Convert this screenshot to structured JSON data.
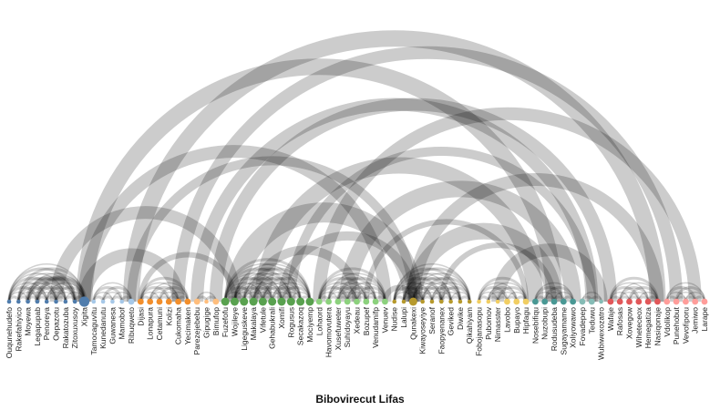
{
  "title": "Bibovirecut Lifas",
  "nodes": [
    {
      "label": "Ouqunehudefo",
      "color": "#4f7cac",
      "size": 1
    },
    {
      "label": "Rakefahiyico",
      "color": "#4f7cac",
      "size": 1
    },
    {
      "label": "Moyewa",
      "color": "#4f7cac",
      "size": 1
    },
    {
      "label": "Legapupab",
      "color": "#4f7cac",
      "size": 1
    },
    {
      "label": "Penoreya",
      "color": "#4f7cac",
      "size": 1
    },
    {
      "label": "Oepazotu",
      "color": "#4f7cac",
      "size": 1
    },
    {
      "label": "Rakatozuba",
      "color": "#4f7cac",
      "size": 1
    },
    {
      "label": "Zitoxuxusoy",
      "color": "#4f7cac",
      "size": 1
    },
    {
      "label": "Xigita",
      "color": "#4f7cac",
      "size": 4
    },
    {
      "label": "Tamocaguvitu",
      "color": "#a6c8e8",
      "size": 1
    },
    {
      "label": "Kunedanutu",
      "color": "#a6c8e8",
      "size": 1
    },
    {
      "label": "Guwanesa",
      "color": "#a6c8e8",
      "size": 1
    },
    {
      "label": "Mamobof",
      "color": "#a6c8e8",
      "size": 1
    },
    {
      "label": "Ribuqweto",
      "color": "#a6c8e8",
      "size": 2
    },
    {
      "label": "Dijasi",
      "color": "#f28e2b",
      "size": 2
    },
    {
      "label": "Lonapura",
      "color": "#f28e2b",
      "size": 2
    },
    {
      "label": "Cetamuni",
      "color": "#f28e2b",
      "size": 2
    },
    {
      "label": "Kolizi",
      "color": "#f28e2b",
      "size": 2
    },
    {
      "label": "Cukomaha",
      "color": "#f28e2b",
      "size": 2
    },
    {
      "label": "Yecimaken",
      "color": "#f28e2b",
      "size": 2
    },
    {
      "label": "Parezejebebu",
      "color": "#ffbe7d",
      "size": 2
    },
    {
      "label": "Gipugige",
      "color": "#ffbe7d",
      "size": 1
    },
    {
      "label": "Bimufop",
      "color": "#ffbe7d",
      "size": 2
    },
    {
      "label": "Fuzefofu",
      "color": "#59a14f",
      "size": 3
    },
    {
      "label": "Wojileye",
      "color": "#59a14f",
      "size": 3
    },
    {
      "label": "Ligeguskeve",
      "color": "#59a14f",
      "size": 3
    },
    {
      "label": "Makalaya",
      "color": "#59a14f",
      "size": 3
    },
    {
      "label": "Vifetule",
      "color": "#59a14f",
      "size": 3
    },
    {
      "label": "Gehabukrali",
      "color": "#59a14f",
      "size": 3
    },
    {
      "label": "Xomifi",
      "color": "#59a14f",
      "size": 3
    },
    {
      "label": "Rogusus",
      "color": "#59a14f",
      "size": 3
    },
    {
      "label": "Secakazoq",
      "color": "#59a14f",
      "size": 3
    },
    {
      "label": "Mociyemp",
      "color": "#59a14f",
      "size": 3
    },
    {
      "label": "Lohaord",
      "color": "#8cd17d",
      "size": 2
    },
    {
      "label": "Havomovutera",
      "color": "#8cd17d",
      "size": 2
    },
    {
      "label": "Xusefuweter",
      "color": "#8cd17d",
      "size": 2
    },
    {
      "label": "Suhidoyayu",
      "color": "#8cd17d",
      "size": 2
    },
    {
      "label": "Xedeau",
      "color": "#8cd17d",
      "size": 2
    },
    {
      "label": "Bozupef",
      "color": "#8cd17d",
      "size": 2
    },
    {
      "label": "Venudamifp",
      "color": "#8cd17d",
      "size": 2
    },
    {
      "label": "Venuev",
      "color": "#8cd17d",
      "size": 2
    },
    {
      "label": "Nudise",
      "color": "#b6992d",
      "size": 1
    },
    {
      "label": "Lalupi",
      "color": "#b6992d",
      "size": 1
    },
    {
      "label": "Qunakexi",
      "color": "#b6992d",
      "size": 3
    },
    {
      "label": "Kiwayoseyiye",
      "color": "#b6992d",
      "size": 1
    },
    {
      "label": "Seranof",
      "color": "#b6992d",
      "size": 1
    },
    {
      "label": "Faopyenanex",
      "color": "#b6992d",
      "size": 1
    },
    {
      "label": "Geviked",
      "color": "#b6992d",
      "size": 1
    },
    {
      "label": "Diwike",
      "color": "#b6992d",
      "size": 1
    },
    {
      "label": "Qikahiyam",
      "color": "#b6992d",
      "size": 1
    },
    {
      "label": "Fobojanasopu",
      "color": "#f1ce63",
      "size": 1
    },
    {
      "label": "Pubomov",
      "color": "#f1ce63",
      "size": 1
    },
    {
      "label": "Nimasster",
      "color": "#f1ce63",
      "size": 1
    },
    {
      "label": "Lavobo",
      "color": "#f1ce63",
      "size": 2
    },
    {
      "label": "Bupayo",
      "color": "#f1ce63",
      "size": 2
    },
    {
      "label": "Hipfagu",
      "color": "#f1ce63",
      "size": 2
    },
    {
      "label": "Nosebifiqu",
      "color": "#499894",
      "size": 2
    },
    {
      "label": "Nuzobupi",
      "color": "#499894",
      "size": 2
    },
    {
      "label": "Rodusudeba",
      "color": "#499894",
      "size": 2
    },
    {
      "label": "Sugayamame",
      "color": "#499894",
      "size": 2
    },
    {
      "label": "Xoliyowawo",
      "color": "#499894",
      "size": 2
    },
    {
      "label": "Fovadepep",
      "color": "#86bcb6",
      "size": 2
    },
    {
      "label": "Teduwu",
      "color": "#86bcb6",
      "size": 2
    },
    {
      "label": "Wubiwexozatro",
      "color": "#86bcb6",
      "size": 1
    },
    {
      "label": "Wafaje",
      "color": "#e15759",
      "size": 2
    },
    {
      "label": "Rafosas",
      "color": "#e15759",
      "size": 2
    },
    {
      "label": "Xovegow",
      "color": "#e15759",
      "size": 2
    },
    {
      "label": "Wiheteceox",
      "color": "#e15759",
      "size": 2
    },
    {
      "label": "Hemegatiza",
      "color": "#e15759",
      "size": 2
    },
    {
      "label": "Nasiqonaje",
      "color": "#e15759",
      "size": 2
    },
    {
      "label": "Vdolikop",
      "color": "#ff9d9a",
      "size": 2
    },
    {
      "label": "Punehobut",
      "color": "#ff9d9a",
      "size": 2
    },
    {
      "label": "Vevofiporu",
      "color": "#ff9d9a",
      "size": 2
    },
    {
      "label": "Jemiwo",
      "color": "#ff9d9a",
      "size": 2
    },
    {
      "label": "Larape",
      "color": "#ff9d9a",
      "size": 2
    }
  ],
  "links": [
    [
      8,
      58,
      4
    ],
    [
      8,
      40,
      3
    ],
    [
      13,
      69,
      4
    ],
    [
      18,
      71,
      3
    ],
    [
      24,
      43,
      5
    ],
    [
      13,
      43,
      2
    ],
    [
      20,
      62,
      3
    ],
    [
      22,
      64,
      3
    ],
    [
      27,
      56,
      4
    ],
    [
      33,
      73,
      3
    ],
    [
      30,
      62,
      2
    ],
    [
      36,
      60,
      4
    ],
    [
      43,
      69,
      3
    ],
    [
      5,
      24,
      3
    ],
    [
      8,
      18,
      3
    ],
    [
      43,
      58,
      4
    ],
    [
      52,
      63,
      3
    ],
    [
      3,
      8,
      1
    ],
    [
      2,
      7,
      1
    ],
    [
      26,
      37,
      2
    ],
    [
      29,
      43,
      2
    ],
    [
      38,
      55,
      1
    ],
    [
      46,
      58,
      1
    ],
    [
      40,
      43,
      1
    ],
    [
      14,
      24,
      1
    ]
  ]
}
